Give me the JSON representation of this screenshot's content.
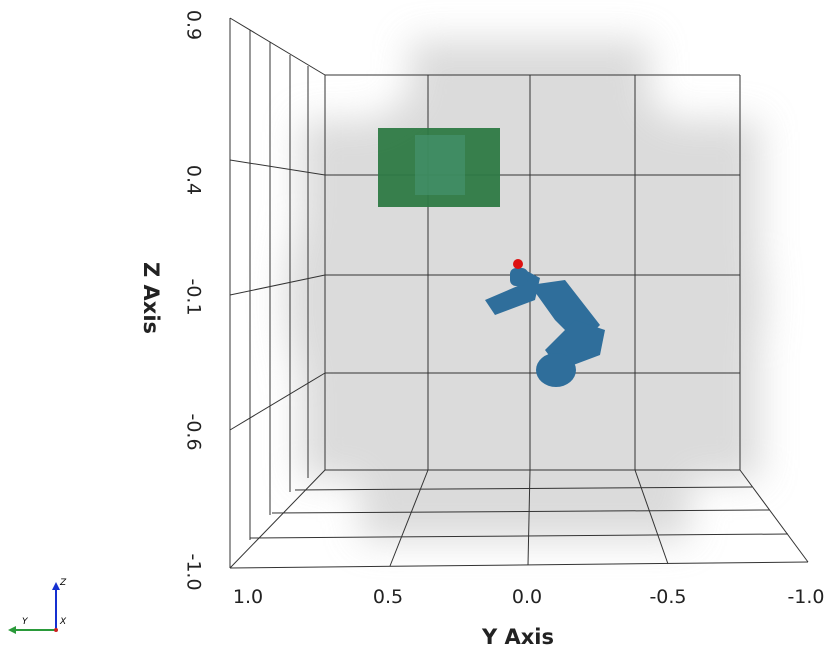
{
  "z_axis": {
    "title": "Z Axis",
    "ticks": [
      "0.9",
      "0.4",
      "-0.1",
      "-0.6",
      "-1.0"
    ]
  },
  "y_axis": {
    "title": "Y Axis",
    "ticks": [
      "1.0",
      "0.5",
      "0.0",
      "-0.5",
      "-1.0"
    ]
  },
  "orientation": {
    "z": "Z",
    "y": "Y",
    "x": "X"
  }
}
